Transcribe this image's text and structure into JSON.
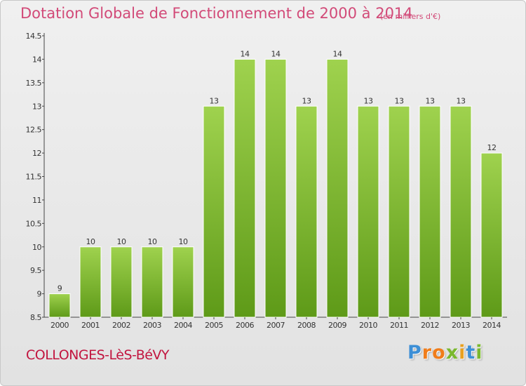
{
  "title": "Dotation Globale de Fonctionnement de 2000 à 2014",
  "unit_note": "(en milliers d'€)",
  "commune": "COLLONGES-LèS-BéVY",
  "logo": {
    "letters": [
      "P",
      "r",
      "o",
      "x",
      "i",
      "t",
      "i"
    ],
    "colors": [
      "#3d8fd6",
      "#f07d1b",
      "#f07d1b",
      "#7ab82e",
      "#e8a020",
      "#3d8fd6",
      "#7ab82e"
    ]
  },
  "colors": {
    "title": "#d24a78",
    "commune": "#c2153f",
    "bar_top": "#9fd24e",
    "bar_bottom": "#5e9a18",
    "axis_text": "#333333"
  },
  "chart_data": {
    "type": "bar",
    "categories": [
      "2000",
      "2001",
      "2002",
      "2003",
      "2004",
      "2005",
      "2006",
      "2007",
      "2008",
      "2009",
      "2010",
      "2011",
      "2012",
      "2013",
      "2014"
    ],
    "values": [
      9,
      10,
      10,
      10,
      10,
      13,
      14,
      14,
      13,
      14,
      13,
      13,
      13,
      13,
      12
    ],
    "labels": [
      "9",
      "10",
      "10",
      "10",
      "10",
      "13",
      "14",
      "14",
      "13",
      "14",
      "13",
      "13",
      "13",
      "13",
      "12"
    ],
    "ylim": [
      8.5,
      14.5
    ],
    "yticks": [
      8.5,
      9,
      9.5,
      10,
      10.5,
      11,
      11.5,
      12,
      12.5,
      13,
      13.5,
      14,
      14.5
    ],
    "ytick_labels": [
      "8.5",
      "9",
      "9.5",
      "10",
      "10.5",
      "11",
      "11.5",
      "12",
      "12.5",
      "13",
      "13.5",
      "14",
      "14.5"
    ],
    "grid": false,
    "legend": "none"
  }
}
